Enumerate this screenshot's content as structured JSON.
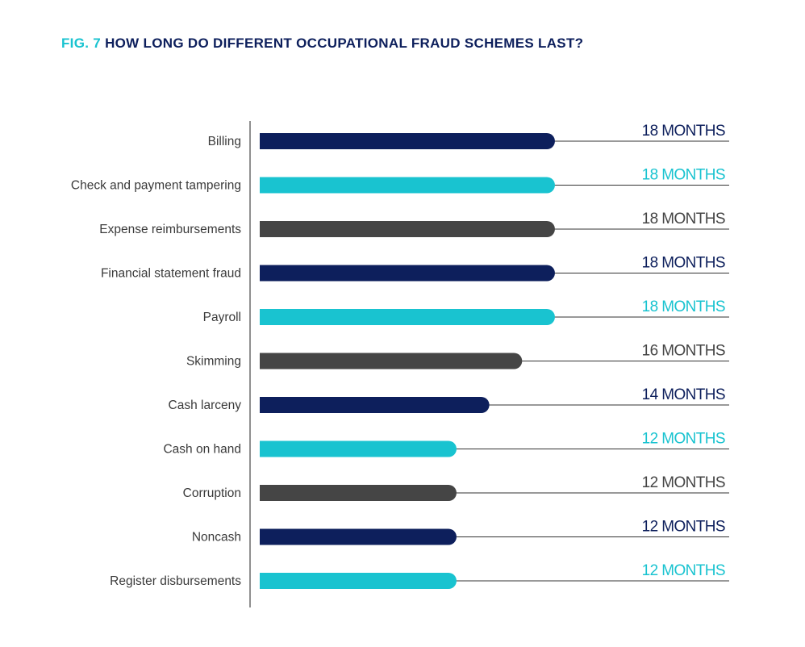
{
  "title": {
    "fig": "FIG. 7",
    "text": "HOW LONG DO DIFFERENT OCCUPATIONAL FRAUD SCHEMES LAST?"
  },
  "colors": {
    "navy": "#0d1f5c",
    "cyan": "#19c3d0",
    "gray": "#454545",
    "label": "#3a3a3a",
    "leader_line": "#333333",
    "axis": "#555555"
  },
  "chart_data": {
    "type": "bar",
    "orientation": "horizontal",
    "title": "HOW LONG DO DIFFERENT OCCUPATIONAL FRAUD SCHEMES LAST?",
    "unit_label": "MONTHS",
    "xlim": [
      0,
      24
    ],
    "grid": false,
    "legend": "none",
    "categories": [
      "Billing",
      "Check and payment tampering",
      "Expense reimbursements",
      "Financial statement fraud",
      "Payroll",
      "Skimming",
      "Cash larceny",
      "Cash on hand",
      "Corruption",
      "Noncash",
      "Register disbursements"
    ],
    "values": [
      18,
      18,
      18,
      18,
      18,
      16,
      14,
      12,
      12,
      12,
      12
    ],
    "value_labels": [
      "18 MONTHS",
      "18 MONTHS",
      "18 MONTHS",
      "18 MONTHS",
      "18 MONTHS",
      "16 MONTHS",
      "14 MONTHS",
      "12 MONTHS",
      "12 MONTHS",
      "12 MONTHS",
      "12 MONTHS"
    ],
    "bar_colors": [
      "navy",
      "cyan",
      "gray",
      "navy",
      "cyan",
      "gray",
      "navy",
      "cyan",
      "gray",
      "navy",
      "cyan"
    ]
  }
}
